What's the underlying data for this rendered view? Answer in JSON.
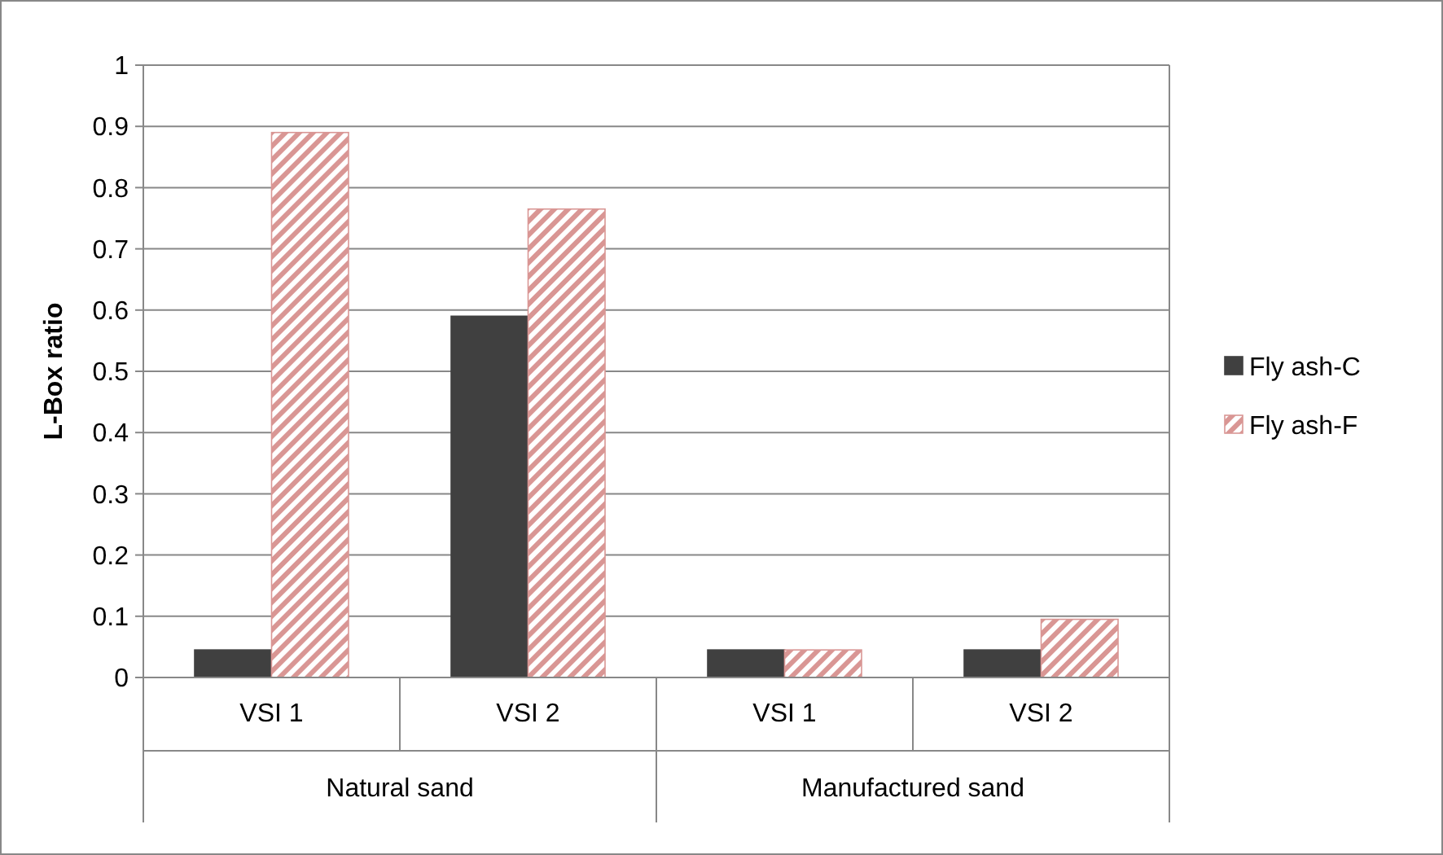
{
  "chart_data": {
    "type": "bar",
    "ylabel": "L-Box ratio",
    "categories": [
      "VSI 1",
      "VSI 2",
      "VSI 1",
      "VSI 2"
    ],
    "annotations": [
      "Natural sand",
      "Manufactured sand"
    ],
    "series": [
      {
        "name": "Fly ash-C",
        "color": "#404040",
        "values": [
          0.045,
          0.59,
          0.045,
          0.045
        ]
      },
      {
        "name": "Fly ash-F",
        "color": "#d99694",
        "values": [
          0.89,
          0.765,
          0.045,
          0.095
        ]
      }
    ],
    "ylim": [
      0,
      1
    ],
    "yticks": [
      0,
      0.1,
      0.2,
      0.3,
      0.4,
      0.5,
      0.6,
      0.7,
      0.8,
      0.9,
      1
    ],
    "grid": "y",
    "legend": "right"
  }
}
